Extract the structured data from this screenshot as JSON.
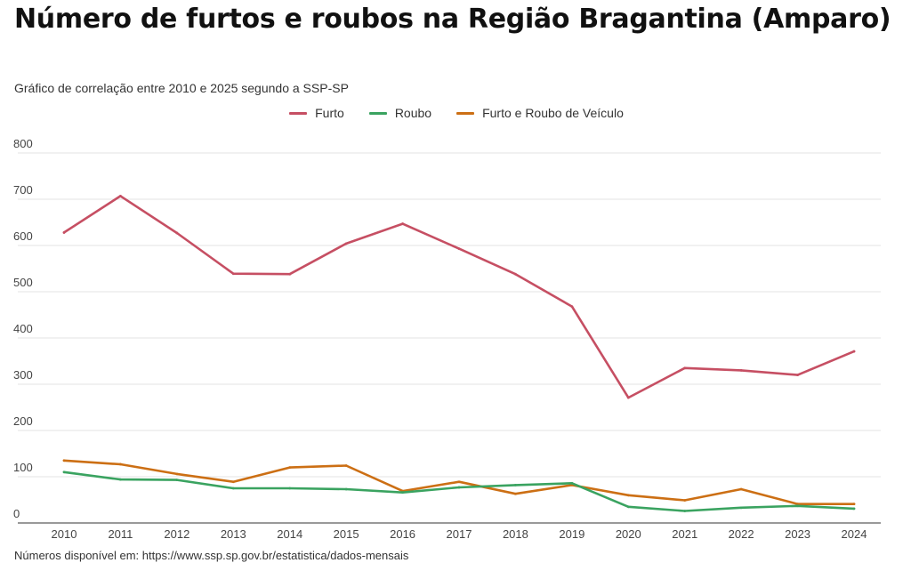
{
  "header": {
    "title": "Número de furtos e roubos na Região Bragantina (Amparo)",
    "subtitle": "Gráfico de correlação entre 2010 e 2025 segundo a SSP-SP"
  },
  "footer": {
    "source": "Números disponível em: https://www.ssp.sp.gov.br/estatistica/dados-mensais"
  },
  "chart_data": {
    "type": "line",
    "title": "Número de furtos e roubos na Região Bragantina (Amparo)",
    "subtitle": "Gráfico de correlação entre 2010 e 2025 segundo a SSP-SP",
    "xlabel": "",
    "ylabel": "",
    "x": [
      "2010",
      "2011",
      "2012",
      "2013",
      "2014",
      "2015",
      "2016",
      "2017",
      "2018",
      "2019",
      "2020",
      "2021",
      "2022",
      "2023",
      "2024"
    ],
    "ylim": [
      0,
      800
    ],
    "yticks": [
      0,
      100,
      200,
      300,
      400,
      500,
      600,
      700,
      800
    ],
    "grid": true,
    "legend_position": "top-center",
    "series": [
      {
        "name": "Furto",
        "color": "#c64f63",
        "values": [
          628,
          707,
          627,
          539,
          538,
          604,
          647,
          593,
          538,
          468,
          271,
          335,
          330,
          320,
          371
        ]
      },
      {
        "name": "Roubo",
        "color": "#3aa360",
        "values": [
          110,
          94,
          93,
          75,
          75,
          73,
          66,
          77,
          82,
          86,
          35,
          26,
          33,
          37,
          31
        ]
      },
      {
        "name": "Furto e Roubo de Veículo",
        "color": "#cc6f14",
        "values": [
          135,
          127,
          106,
          89,
          120,
          124,
          69,
          89,
          63,
          82,
          60,
          49,
          73,
          41,
          41
        ]
      }
    ]
  }
}
